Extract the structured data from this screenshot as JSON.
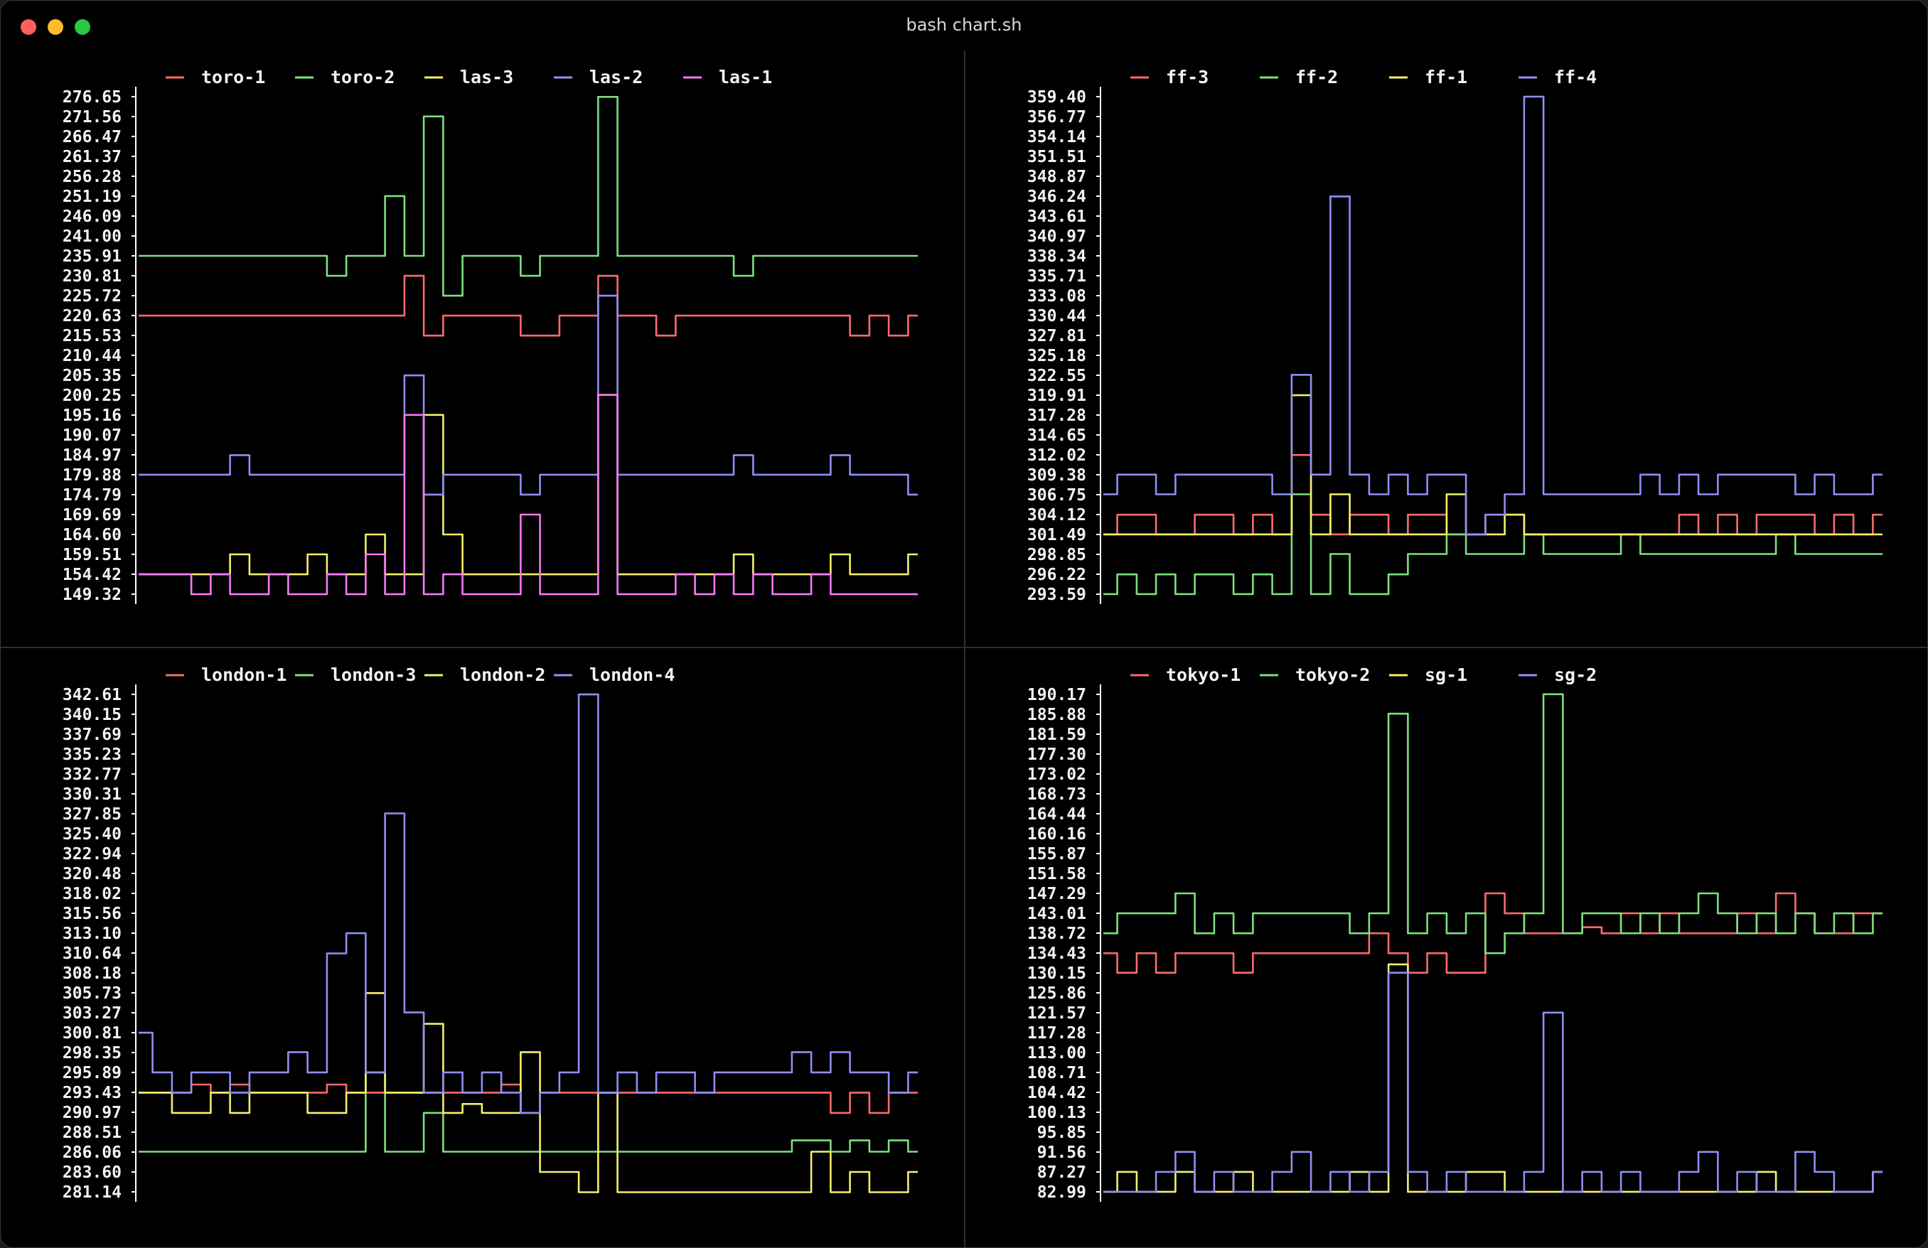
{
  "window": {
    "title": "bash chart.sh",
    "traffic_lights": {
      "close": "#fe5f57",
      "minimize": "#febc2e",
      "maximize": "#28c840"
    }
  },
  "colors": {
    "red": "#ff6b6b",
    "green": "#7ee07e",
    "yellow": "#f4f06a",
    "blue": "#8f8ff5",
    "magenta": "#f57af5",
    "axis": "#ffffff"
  },
  "chart_data": [
    {
      "type": "line",
      "id": "toro-las",
      "ylim": [
        149.32,
        276.65
      ],
      "yticks": [
        "276.65",
        "271.56",
        "266.47",
        "261.37",
        "256.28",
        "251.19",
        "246.09",
        "241.00",
        "235.91",
        "230.81",
        "225.72",
        "220.63",
        "215.53",
        "210.44",
        "205.35",
        "200.25",
        "195.16",
        "190.07",
        "184.97",
        "179.88",
        "174.79",
        "169.69",
        "164.60",
        "159.51",
        "154.42",
        "149.32"
      ],
      "x": [
        0,
        1,
        2,
        3,
        4,
        5,
        6,
        7,
        8,
        9,
        10,
        11,
        12,
        13,
        14,
        15,
        16,
        17,
        18,
        19,
        20,
        21,
        22,
        23,
        24,
        25,
        26,
        27,
        28,
        29,
        30,
        31,
        32,
        33,
        34,
        35,
        36,
        37,
        38,
        39,
        40
      ],
      "series": [
        {
          "name": "toro-1",
          "color": "red",
          "values": [
            220.6,
            220.6,
            220.6,
            220.6,
            220.6,
            220.6,
            220.6,
            220.6,
            220.6,
            220.6,
            220.6,
            220.6,
            220.6,
            220.6,
            230.8,
            215.5,
            220.6,
            220.6,
            220.6,
            220.6,
            215.5,
            215.5,
            220.6,
            220.6,
            230.8,
            220.6,
            220.6,
            215.5,
            220.6,
            220.6,
            220.6,
            220.6,
            220.6,
            220.6,
            220.6,
            220.6,
            220.6,
            215.5,
            220.6,
            215.5,
            220.6
          ]
        },
        {
          "name": "toro-2",
          "color": "green",
          "values": [
            235.9,
            235.9,
            235.9,
            235.9,
            235.9,
            235.9,
            235.9,
            235.9,
            235.9,
            235.9,
            230.8,
            235.9,
            235.9,
            251.2,
            235.9,
            271.6,
            225.7,
            235.9,
            235.9,
            235.9,
            230.8,
            235.9,
            235.9,
            235.9,
            276.6,
            235.9,
            235.9,
            235.9,
            235.9,
            235.9,
            235.9,
            230.8,
            235.9,
            235.9,
            235.9,
            235.9,
            235.9,
            235.9,
            235.9,
            235.9,
            235.9
          ]
        },
        {
          "name": "las-3",
          "color": "yellow",
          "values": [
            154.4,
            154.4,
            154.4,
            154.4,
            154.4,
            159.5,
            154.4,
            154.4,
            154.4,
            159.5,
            154.4,
            154.4,
            164.6,
            154.4,
            154.4,
            195.2,
            164.6,
            154.4,
            154.4,
            154.4,
            154.4,
            154.4,
            154.4,
            154.4,
            200.3,
            154.4,
            154.4,
            154.4,
            154.4,
            154.4,
            154.4,
            159.5,
            154.4,
            154.4,
            154.4,
            154.4,
            159.5,
            154.4,
            154.4,
            154.4,
            159.5
          ]
        },
        {
          "name": "las-2",
          "color": "blue",
          "values": [
            179.9,
            179.9,
            179.9,
            179.9,
            179.9,
            184.9,
            179.9,
            179.9,
            179.9,
            179.9,
            179.9,
            179.9,
            179.9,
            179.9,
            205.3,
            174.8,
            179.9,
            179.9,
            179.9,
            179.9,
            174.8,
            179.9,
            179.9,
            179.9,
            225.7,
            179.9,
            179.9,
            179.9,
            179.9,
            179.9,
            179.9,
            184.9,
            179.9,
            179.9,
            179.9,
            179.9,
            184.9,
            179.9,
            179.9,
            179.9,
            174.8
          ]
        },
        {
          "name": "las-1",
          "color": "magenta",
          "values": [
            154.4,
            154.4,
            154.4,
            149.3,
            154.4,
            149.3,
            149.3,
            154.4,
            149.3,
            149.3,
            154.4,
            149.3,
            159.5,
            149.3,
            195.2,
            149.3,
            154.4,
            149.3,
            149.3,
            149.3,
            169.7,
            149.3,
            149.3,
            149.3,
            200.3,
            149.3,
            149.3,
            149.3,
            154.4,
            149.3,
            154.4,
            149.3,
            154.4,
            149.3,
            149.3,
            154.4,
            149.3,
            149.3,
            149.3,
            149.3,
            149.3
          ]
        }
      ]
    },
    {
      "type": "line",
      "id": "ff",
      "ylim": [
        293.59,
        359.4
      ],
      "yticks": [
        "359.40",
        "356.77",
        "354.14",
        "351.51",
        "348.87",
        "346.24",
        "343.61",
        "340.97",
        "338.34",
        "335.71",
        "333.08",
        "330.44",
        "327.81",
        "325.18",
        "322.55",
        "319.91",
        "317.28",
        "314.65",
        "312.02",
        "309.38",
        "306.75",
        "304.12",
        "301.49",
        "298.85",
        "296.22",
        "293.59"
      ],
      "x": [
        0,
        1,
        2,
        3,
        4,
        5,
        6,
        7,
        8,
        9,
        10,
        11,
        12,
        13,
        14,
        15,
        16,
        17,
        18,
        19,
        20,
        21,
        22,
        23,
        24,
        25,
        26,
        27,
        28,
        29,
        30,
        31,
        32,
        33,
        34,
        35,
        36,
        37,
        38,
        39,
        40
      ],
      "series": [
        {
          "name": "ff-3",
          "color": "red",
          "values": [
            301.5,
            304.1,
            304.1,
            301.5,
            301.5,
            304.1,
            304.1,
            301.5,
            304.1,
            301.5,
            312.0,
            304.1,
            301.5,
            304.1,
            304.1,
            301.5,
            304.1,
            304.1,
            301.5,
            301.5,
            304.1,
            304.1,
            301.5,
            301.5,
            301.5,
            301.5,
            301.5,
            301.5,
            301.5,
            301.5,
            304.1,
            301.5,
            304.1,
            301.5,
            304.1,
            304.1,
            304.1,
            301.5,
            304.1,
            301.5,
            304.1
          ]
        },
        {
          "name": "ff-2",
          "color": "green",
          "values": [
            293.6,
            296.2,
            293.6,
            296.2,
            293.6,
            296.2,
            296.2,
            293.6,
            296.2,
            293.6,
            306.8,
            293.6,
            298.9,
            293.6,
            293.6,
            296.2,
            298.9,
            298.9,
            301.5,
            298.9,
            298.9,
            298.9,
            301.5,
            298.9,
            298.9,
            298.9,
            298.9,
            301.5,
            298.9,
            298.9,
            298.9,
            298.9,
            298.9,
            298.9,
            298.9,
            301.5,
            298.9,
            298.9,
            298.9,
            298.9,
            298.9
          ]
        },
        {
          "name": "ff-1",
          "color": "yellow",
          "values": [
            301.5,
            301.5,
            301.5,
            301.5,
            301.5,
            301.5,
            301.5,
            301.5,
            301.5,
            301.5,
            319.9,
            301.5,
            306.8,
            301.5,
            301.5,
            301.5,
            301.5,
            301.5,
            306.8,
            301.5,
            301.5,
            304.1,
            301.5,
            301.5,
            301.5,
            301.5,
            301.5,
            301.5,
            301.5,
            301.5,
            301.5,
            301.5,
            301.5,
            301.5,
            301.5,
            301.5,
            301.5,
            301.5,
            301.5,
            301.5,
            301.5
          ]
        },
        {
          "name": "ff-4",
          "color": "blue",
          "values": [
            306.8,
            309.4,
            309.4,
            306.8,
            309.4,
            309.4,
            309.4,
            309.4,
            309.4,
            306.8,
            322.6,
            309.4,
            346.2,
            309.4,
            306.8,
            309.4,
            306.8,
            309.4,
            309.4,
            301.5,
            304.1,
            306.8,
            359.4,
            306.8,
            306.8,
            306.8,
            306.8,
            306.8,
            309.4,
            306.8,
            309.4,
            306.8,
            309.4,
            309.4,
            309.4,
            309.4,
            306.8,
            309.4,
            306.8,
            306.8,
            309.4
          ]
        }
      ]
    },
    {
      "type": "line",
      "id": "london",
      "ylim": [
        281.14,
        342.61
      ],
      "yticks": [
        "342.61",
        "340.15",
        "337.69",
        "335.23",
        "332.77",
        "330.31",
        "327.85",
        "325.40",
        "322.94",
        "320.48",
        "318.02",
        "315.56",
        "313.10",
        "310.64",
        "308.18",
        "305.73",
        "303.27",
        "300.81",
        "298.35",
        "295.89",
        "293.43",
        "290.97",
        "288.51",
        "286.06",
        "283.60",
        "281.14"
      ],
      "x": [
        0,
        1,
        2,
        3,
        4,
        5,
        6,
        7,
        8,
        9,
        10,
        11,
        12,
        13,
        14,
        15,
        16,
        17,
        18,
        19,
        20,
        21,
        22,
        23,
        24,
        25,
        26,
        27,
        28,
        29,
        30,
        31,
        32,
        33,
        34,
        35,
        36,
        37,
        38,
        39,
        40
      ],
      "series": [
        {
          "name": "london-1",
          "color": "red",
          "values": [
            293.4,
            293.4,
            293.4,
            294.4,
            293.4,
            294.4,
            293.4,
            293.4,
            293.4,
            293.4,
            294.4,
            293.4,
            293.4,
            293.4,
            293.4,
            293.4,
            293.4,
            293.4,
            293.4,
            294.4,
            290.9,
            293.4,
            293.4,
            293.4,
            293.4,
            293.4,
            293.4,
            293.4,
            293.4,
            293.4,
            293.4,
            293.4,
            293.4,
            293.4,
            293.4,
            293.4,
            290.9,
            293.4,
            290.9,
            293.4,
            293.4
          ]
        },
        {
          "name": "london-3",
          "color": "green",
          "values": [
            286.1,
            286.1,
            286.1,
            286.1,
            286.1,
            286.1,
            286.1,
            286.1,
            286.1,
            286.1,
            286.1,
            286.1,
            295.9,
            286.1,
            286.1,
            290.9,
            286.1,
            286.1,
            286.1,
            286.1,
            286.1,
            286.1,
            286.1,
            286.1,
            286.1,
            286.1,
            286.1,
            286.1,
            286.1,
            286.1,
            286.1,
            286.1,
            286.1,
            286.1,
            287.5,
            287.5,
            286.1,
            287.5,
            286.1,
            287.5,
            286.1
          ]
        },
        {
          "name": "london-2",
          "color": "yellow",
          "values": [
            293.4,
            293.4,
            290.9,
            290.9,
            293.4,
            290.9,
            293.4,
            293.4,
            293.4,
            290.9,
            290.9,
            293.4,
            305.7,
            293.4,
            293.4,
            301.9,
            290.9,
            292.0,
            290.9,
            290.9,
            298.4,
            283.6,
            283.6,
            281.1,
            293.4,
            281.1,
            281.1,
            281.1,
            281.1,
            281.1,
            281.1,
            281.1,
            281.1,
            281.1,
            281.1,
            286.1,
            281.1,
            283.6,
            281.1,
            281.1,
            283.6
          ]
        },
        {
          "name": "london-4",
          "color": "blue",
          "values": [
            300.8,
            295.9,
            293.4,
            295.9,
            295.9,
            293.4,
            295.9,
            295.9,
            298.4,
            295.9,
            310.6,
            313.1,
            295.9,
            327.9,
            303.3,
            293.4,
            295.9,
            293.4,
            295.9,
            293.4,
            290.9,
            293.4,
            295.9,
            342.6,
            293.4,
            295.9,
            293.4,
            295.9,
            295.9,
            293.4,
            295.9,
            295.9,
            295.9,
            295.9,
            298.4,
            295.9,
            298.4,
            295.9,
            295.9,
            293.4,
            295.9
          ]
        }
      ]
    },
    {
      "type": "line",
      "id": "tokyo-sg",
      "ylim": [
        82.99,
        190.17
      ],
      "yticks": [
        "190.17",
        "185.88",
        "181.59",
        "177.30",
        "173.02",
        "168.73",
        "164.44",
        "160.16",
        "155.87",
        "151.58",
        "147.29",
        "143.01",
        "138.72",
        "134.43",
        "130.15",
        "125.86",
        "121.57",
        "117.28",
        "113.00",
        "108.71",
        "104.42",
        "100.13",
        "95.85",
        "91.56",
        "87.27",
        "82.99"
      ],
      "x": [
        0,
        1,
        2,
        3,
        4,
        5,
        6,
        7,
        8,
        9,
        10,
        11,
        12,
        13,
        14,
        15,
        16,
        17,
        18,
        19,
        20,
        21,
        22,
        23,
        24,
        25,
        26,
        27,
        28,
        29,
        30,
        31,
        32,
        33,
        34,
        35,
        36,
        37,
        38,
        39,
        40
      ],
      "series": [
        {
          "name": "tokyo-1",
          "color": "red",
          "values": [
            134.4,
            130.2,
            134.4,
            130.2,
            134.4,
            134.4,
            134.4,
            130.2,
            134.4,
            134.4,
            134.4,
            134.4,
            134.4,
            134.4,
            138.7,
            134.4,
            130.2,
            134.4,
            130.2,
            130.2,
            147.3,
            143.0,
            138.7,
            138.7,
            138.7,
            140.0,
            138.7,
            143.0,
            138.7,
            143.0,
            138.7,
            138.7,
            138.7,
            143.0,
            138.7,
            147.3,
            143.0,
            138.7,
            138.7,
            143.0,
            143.0
          ]
        },
        {
          "name": "tokyo-2",
          "color": "green",
          "values": [
            138.7,
            143.0,
            143.0,
            143.0,
            147.3,
            138.7,
            143.0,
            138.7,
            143.0,
            143.0,
            143.0,
            143.0,
            143.0,
            138.7,
            143.0,
            186.0,
            138.7,
            143.0,
            138.7,
            143.0,
            134.4,
            138.7,
            143.0,
            190.2,
            138.7,
            143.0,
            143.0,
            138.7,
            143.0,
            138.7,
            143.0,
            147.3,
            143.0,
            138.7,
            143.0,
            138.7,
            143.0,
            138.7,
            143.0,
            138.7,
            143.0
          ]
        },
        {
          "name": "sg-1",
          "color": "yellow",
          "values": [
            83.0,
            87.3,
            83.0,
            83.0,
            87.3,
            83.0,
            83.0,
            87.3,
            83.0,
            83.0,
            83.0,
            83.0,
            83.0,
            87.3,
            83.0,
            132.0,
            83.0,
            83.0,
            83.0,
            87.3,
            87.3,
            83.0,
            83.0,
            83.0,
            83.0,
            83.0,
            83.0,
            83.0,
            83.0,
            83.0,
            83.0,
            83.0,
            83.0,
            83.0,
            87.3,
            83.0,
            83.0,
            83.0,
            83.0,
            83.0,
            87.3
          ]
        },
        {
          "name": "sg-2",
          "color": "blue",
          "values": [
            83.0,
            83.0,
            83.0,
            87.3,
            91.6,
            83.0,
            87.3,
            83.0,
            83.0,
            87.3,
            91.6,
            83.0,
            87.3,
            83.0,
            87.3,
            130.2,
            87.3,
            83.0,
            87.3,
            83.0,
            83.0,
            83.0,
            87.3,
            121.6,
            83.0,
            87.3,
            83.0,
            87.3,
            83.0,
            83.0,
            87.3,
            91.6,
            83.0,
            87.3,
            83.0,
            83.0,
            91.6,
            87.3,
            83.0,
            83.0,
            87.3
          ]
        }
      ]
    }
  ]
}
